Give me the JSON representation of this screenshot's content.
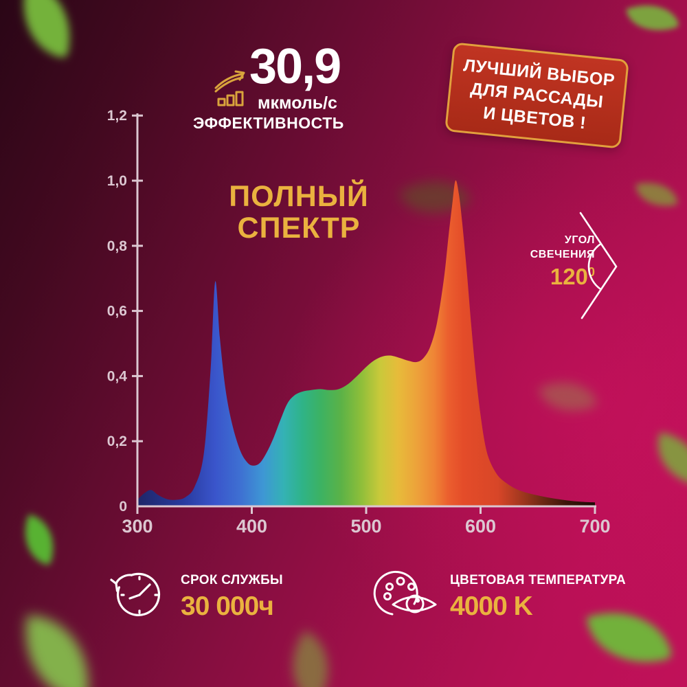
{
  "header": {
    "efficiency_value": "30,9",
    "efficiency_unit": "мкмоль/с",
    "efficiency_label": "ЭФФЕКТИВНОСТЬ"
  },
  "badge": {
    "lines": [
      "ЛУЧШИЙ ВЫБОР",
      "ДЛЯ РАССАДЫ",
      "И ЦВЕТОВ !"
    ]
  },
  "spectrum_title": {
    "line1": "ПОЛНЫЙ",
    "line2": "СПЕКТР"
  },
  "beam_angle": {
    "label_line1": "УГОЛ",
    "label_line2": "СВЕЧЕНИЯ",
    "value": "120",
    "value_sup": "0"
  },
  "lifespan": {
    "label": "СРОК СЛУЖБЫ",
    "value": "30 000ч"
  },
  "color_temperature": {
    "label": "ЦВЕТОВАЯ ТЕМПЕРАТУРА",
    "value": "4000 K"
  },
  "icons": [
    "growth-chart-icon",
    "angle-120-icon",
    "clock-history-icon",
    "palette-eye-icon"
  ],
  "colors": {
    "gold": "#eab23f",
    "white": "#ffffff",
    "badge_bg": "#b32e1c",
    "badge_border": "#e2a03c",
    "axis": "#dcc7d1",
    "bg_dark": "#2a0616",
    "bg_bright": "#c11159"
  },
  "chart_data": {
    "type": "area",
    "title": "ПОЛНЫЙ СПЕКТР",
    "xlabel": "",
    "ylabel": "",
    "xlim": [
      300,
      700
    ],
    "ylim": [
      0,
      1.2
    ],
    "grid": false,
    "legend": false,
    "x_ticks": [
      300,
      400,
      500,
      600,
      700
    ],
    "y_ticks": [
      {
        "v": 0,
        "label": "0"
      },
      {
        "v": 0.2,
        "label": "0,2"
      },
      {
        "v": 0.4,
        "label": "0,4"
      },
      {
        "v": 0.6,
        "label": "0,6"
      },
      {
        "v": 0.8,
        "label": "0,8"
      },
      {
        "v": 1.0,
        "label": "1,0"
      },
      {
        "v": 1.2,
        "label": "1,2"
      }
    ],
    "points": [
      [
        300,
        0.02
      ],
      [
        306,
        0.04
      ],
      [
        312,
        0.05
      ],
      [
        318,
        0.035
      ],
      [
        326,
        0.022
      ],
      [
        334,
        0.02
      ],
      [
        342,
        0.028
      ],
      [
        350,
        0.06
      ],
      [
        358,
        0.16
      ],
      [
        364,
        0.42
      ],
      [
        368,
        0.69
      ],
      [
        372,
        0.52
      ],
      [
        377,
        0.36
      ],
      [
        383,
        0.25
      ],
      [
        390,
        0.17
      ],
      [
        396,
        0.135
      ],
      [
        401,
        0.125
      ],
      [
        407,
        0.133
      ],
      [
        413,
        0.165
      ],
      [
        419,
        0.21
      ],
      [
        425,
        0.265
      ],
      [
        431,
        0.315
      ],
      [
        437,
        0.34
      ],
      [
        444,
        0.352
      ],
      [
        452,
        0.357
      ],
      [
        460,
        0.36
      ],
      [
        468,
        0.357
      ],
      [
        476,
        0.36
      ],
      [
        484,
        0.375
      ],
      [
        492,
        0.4
      ],
      [
        500,
        0.428
      ],
      [
        507,
        0.448
      ],
      [
        514,
        0.46
      ],
      [
        521,
        0.463
      ],
      [
        529,
        0.456
      ],
      [
        537,
        0.447
      ],
      [
        544,
        0.443
      ],
      [
        550,
        0.455
      ],
      [
        556,
        0.49
      ],
      [
        562,
        0.565
      ],
      [
        568,
        0.7
      ],
      [
        572,
        0.83
      ],
      [
        575,
        0.92
      ],
      [
        578,
        1.0
      ],
      [
        581,
        0.96
      ],
      [
        584,
        0.87
      ],
      [
        588,
        0.72
      ],
      [
        592,
        0.55
      ],
      [
        596,
        0.4
      ],
      [
        600,
        0.28
      ],
      [
        604,
        0.19
      ],
      [
        608,
        0.14
      ],
      [
        614,
        0.1
      ],
      [
        620,
        0.078
      ],
      [
        630,
        0.055
      ],
      [
        640,
        0.042
      ],
      [
        652,
        0.032
      ],
      [
        664,
        0.024
      ],
      [
        676,
        0.018
      ],
      [
        688,
        0.014
      ],
      [
        700,
        0.012
      ]
    ],
    "gradient_stops": [
      {
        "offset": 0,
        "color": "#1f2668"
      },
      {
        "offset": 0.1,
        "color": "#283a9e"
      },
      {
        "offset": 0.17,
        "color": "#3a55cb"
      },
      {
        "offset": 0.225,
        "color": "#3e70d2"
      },
      {
        "offset": 0.275,
        "color": "#3e97d4"
      },
      {
        "offset": 0.32,
        "color": "#34b2b4"
      },
      {
        "offset": 0.36,
        "color": "#2fb388"
      },
      {
        "offset": 0.4,
        "color": "#3cb263"
      },
      {
        "offset": 0.445,
        "color": "#5bb247"
      },
      {
        "offset": 0.4875,
        "color": "#8cbe3a"
      },
      {
        "offset": 0.53,
        "color": "#c9c93a"
      },
      {
        "offset": 0.57,
        "color": "#e7bb3a"
      },
      {
        "offset": 0.6125,
        "color": "#eda13a"
      },
      {
        "offset": 0.65,
        "color": "#ef8335"
      },
      {
        "offset": 0.68,
        "color": "#eb5e2e"
      },
      {
        "offset": 0.7125,
        "color": "#e44c29"
      },
      {
        "offset": 0.7875,
        "color": "#d84628"
      },
      {
        "offset": 0.8375,
        "color": "#a4381f"
      },
      {
        "offset": 0.8875,
        "color": "#6b2814"
      },
      {
        "offset": 0.9375,
        "color": "#3d160b"
      },
      {
        "offset": 1,
        "color": "#1d0a05"
      }
    ]
  }
}
